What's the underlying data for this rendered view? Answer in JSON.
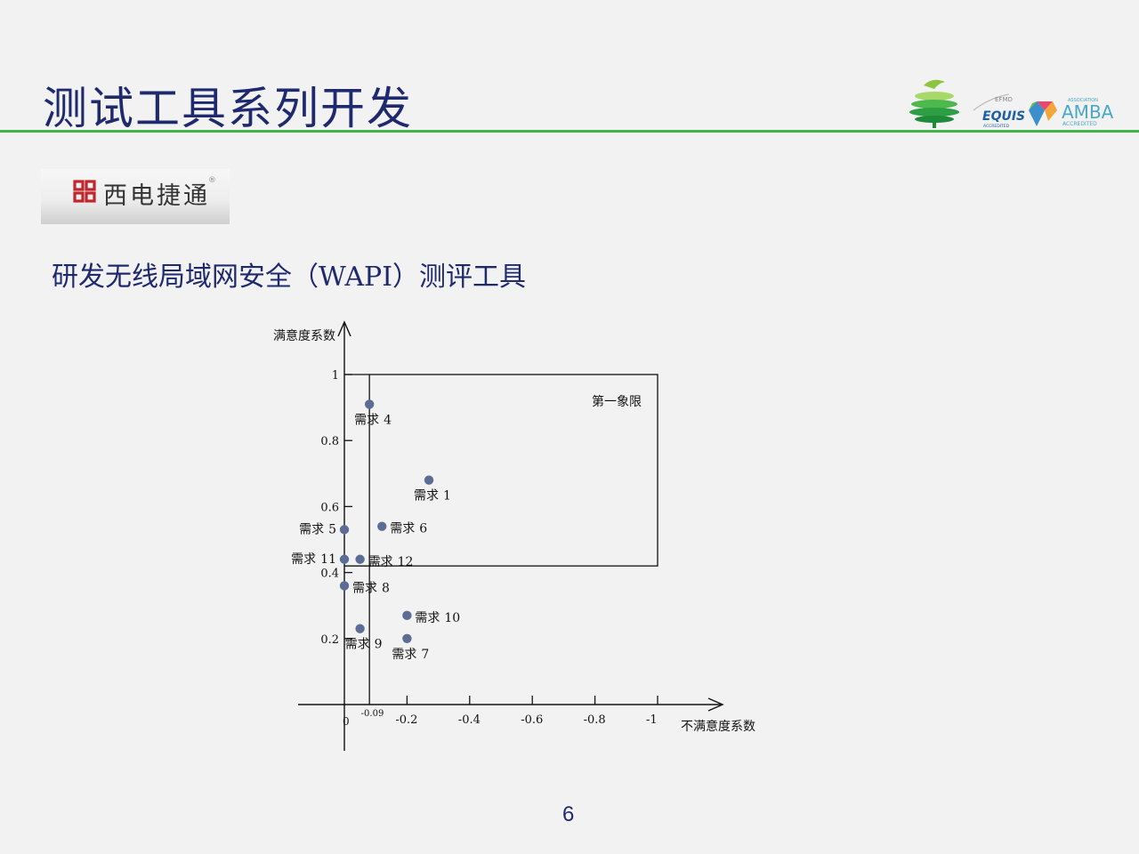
{
  "slide": {
    "title": "测试工具系列开发",
    "subtitle": "研发无线局域网安全（WAPI）测评工具",
    "page_number": "6"
  },
  "brand": {
    "name": "西电捷通",
    "registered": "®"
  },
  "logos": {
    "efmd": "EFMD",
    "equis": "EQUIS",
    "equis_sub": "ACCREDITED",
    "amba": "AMBA",
    "amba_top": "ASSOCIATION",
    "amba_sub": "ACCREDITED"
  },
  "colors": {
    "title": "#1f2a6e",
    "rule": "#3cb54a",
    "point": "#5b6d95"
  },
  "chart_data": {
    "type": "scatter",
    "xlabel": "不满意度系数",
    "ylabel": "满意度系数",
    "xlim": [
      0,
      -1
    ],
    "ylim": [
      0,
      1
    ],
    "x_ticks": [
      {
        "value": 0,
        "label": "0"
      },
      {
        "value": -0.09,
        "label": "-0.09"
      },
      {
        "value": -0.2,
        "label": "-0.2"
      },
      {
        "value": -0.4,
        "label": "-0.4"
      },
      {
        "value": -0.6,
        "label": "-0.6"
      },
      {
        "value": -0.8,
        "label": "-0.8"
      },
      {
        "value": -1,
        "label": "-1"
      }
    ],
    "y_ticks": [
      {
        "value": 1,
        "label": "1"
      },
      {
        "value": 0.8,
        "label": "0.8"
      },
      {
        "value": 0.6,
        "label": "0.6"
      },
      {
        "value": 0.4,
        "label": "0.4"
      },
      {
        "value": 0.2,
        "label": "0.2"
      }
    ],
    "quadrant_label": "第一象限",
    "quadrant_box": {
      "x": [
        -0.08,
        -1
      ],
      "y": [
        0.42,
        1
      ]
    },
    "points": [
      {
        "label": "需求4",
        "x": -0.08,
        "y": 0.91,
        "label_pos": "below"
      },
      {
        "label": "需求1",
        "x": -0.27,
        "y": 0.68,
        "label_pos": "below"
      },
      {
        "label": "需求6",
        "x": -0.12,
        "y": 0.54,
        "label_pos": "right"
      },
      {
        "label": "需求5",
        "x": 0.0,
        "y": 0.53,
        "label_pos": "left"
      },
      {
        "label": "需求11",
        "x": 0.0,
        "y": 0.44,
        "label_pos": "left"
      },
      {
        "label": "需求12",
        "x": -0.05,
        "y": 0.44,
        "label_pos": "right"
      },
      {
        "label": "需求8",
        "x": 0.0,
        "y": 0.36,
        "label_pos": "right"
      },
      {
        "label": "需求10",
        "x": -0.2,
        "y": 0.27,
        "label_pos": "right"
      },
      {
        "label": "需求9",
        "x": -0.05,
        "y": 0.23,
        "label_pos": "below"
      },
      {
        "label": "需求7",
        "x": -0.2,
        "y": 0.2,
        "label_pos": "below"
      }
    ]
  }
}
